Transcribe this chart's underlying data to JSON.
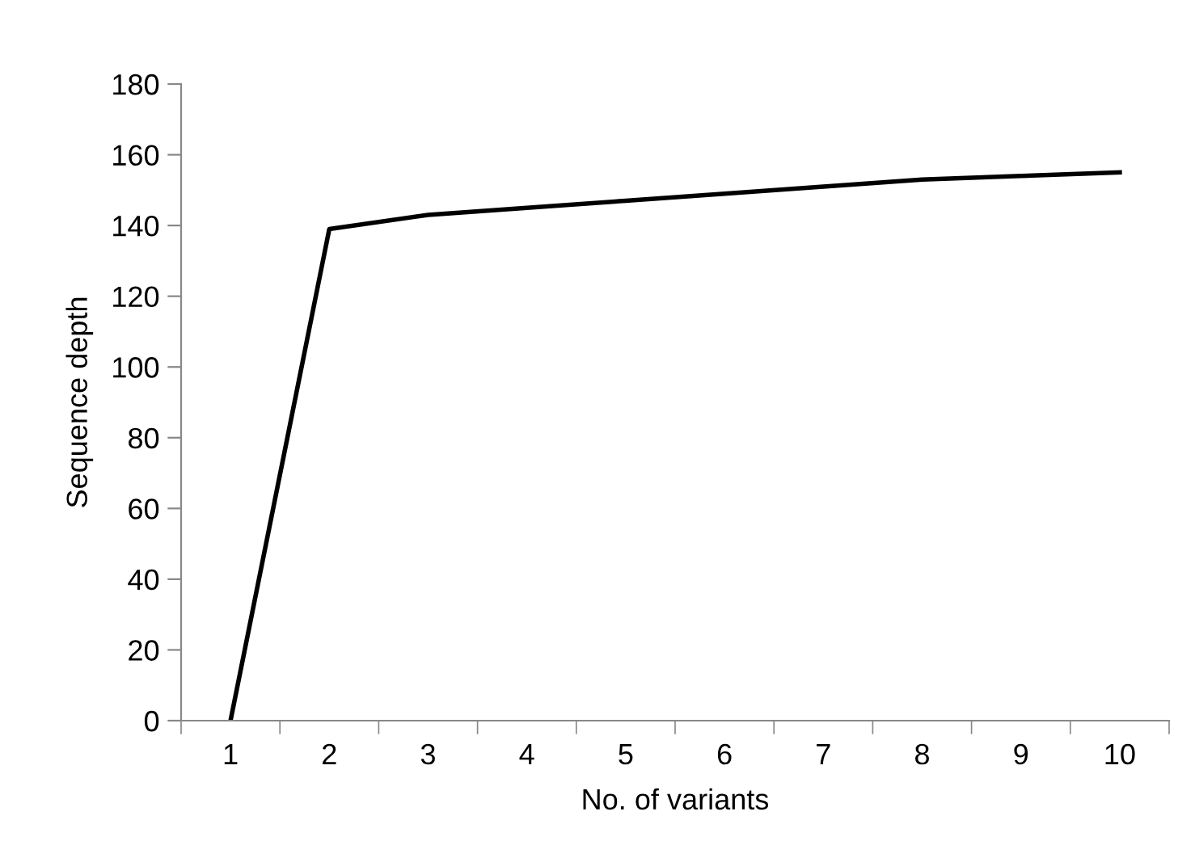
{
  "chart_data": {
    "type": "line",
    "xlabel": "No. of variants",
    "ylabel": "Sequence depth",
    "categories": [
      "1",
      "2",
      "3",
      "4",
      "5",
      "6",
      "7",
      "8",
      "9",
      "10"
    ],
    "series": [
      {
        "color": "#000000",
        "values": [
          0,
          139,
          143,
          145,
          147,
          149,
          151,
          153,
          154,
          155
        ]
      }
    ],
    "ylim": [
      0,
      180
    ],
    "yticks": [
      0,
      20,
      40,
      60,
      80,
      100,
      120,
      140,
      160,
      180
    ],
    "grid": false,
    "marker": "none",
    "line_style": "solid"
  }
}
